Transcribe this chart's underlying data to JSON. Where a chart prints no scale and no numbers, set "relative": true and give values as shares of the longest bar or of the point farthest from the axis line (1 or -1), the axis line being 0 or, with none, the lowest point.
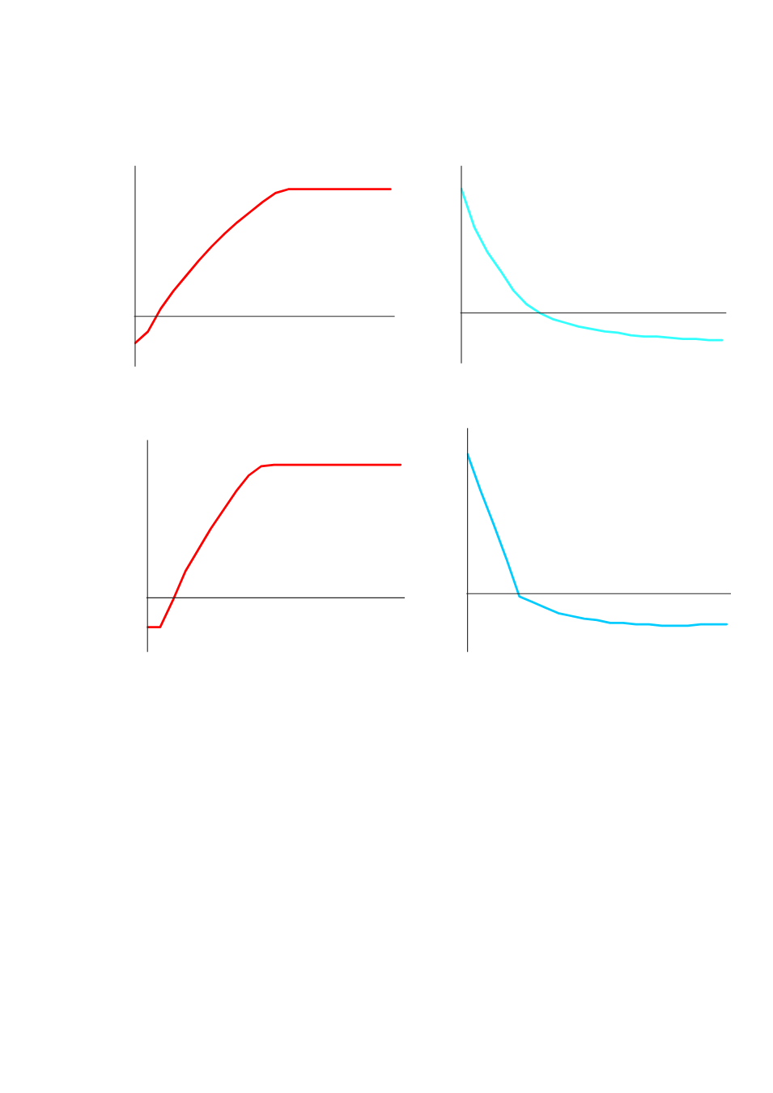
{
  "chart_data": [
    {
      "type": "line",
      "relative": true,
      "categories": [
        null,
        null,
        null,
        null,
        null,
        null,
        null,
        null,
        null,
        null,
        null,
        null,
        null,
        null,
        null,
        null,
        null,
        null,
        null,
        null,
        null
      ],
      "series": [
        {
          "color": "#ff0000",
          "values": [
            -0.21,
            -0.12,
            0.06,
            0.2,
            0.32,
            0.44,
            0.55,
            0.65,
            0.74,
            0.82,
            0.9,
            0.97,
            1,
            1,
            1,
            1,
            1,
            1,
            1,
            1,
            1
          ]
        }
      ]
    },
    {
      "type": "line",
      "relative": true,
      "categories": [
        null,
        null,
        null,
        null,
        null,
        null,
        null,
        null,
        null,
        null,
        null,
        null,
        null,
        null,
        null,
        null,
        null,
        null,
        null,
        null,
        null
      ],
      "series": [
        {
          "color": "#33ffff",
          "values": [
            1,
            0.69,
            0.49,
            0.34,
            0.18,
            0.07,
            0,
            -0.05,
            -0.08,
            -0.11,
            -0.13,
            -0.15,
            -0.16,
            -0.18,
            -0.19,
            -0.19,
            -0.2,
            -0.21,
            -0.21,
            -0.22,
            -0.22
          ]
        }
      ]
    },
    {
      "type": "line",
      "relative": true,
      "categories": [
        null,
        null,
        null,
        null,
        null,
        null,
        null,
        null,
        null,
        null,
        null,
        null,
        null,
        null,
        null,
        null,
        null,
        null,
        null,
        null,
        null
      ],
      "series": [
        {
          "color": "#ff0000",
          "values": [
            -0.22,
            -0.22,
            -0.02,
            0.2,
            0.36,
            0.52,
            0.66,
            0.8,
            0.92,
            0.99,
            1,
            1,
            1,
            1,
            1,
            1,
            1,
            1,
            1,
            1,
            1
          ]
        }
      ]
    },
    {
      "type": "line",
      "relative": true,
      "categories": [
        null,
        null,
        null,
        null,
        null,
        null,
        null,
        null,
        null,
        null,
        null,
        null,
        null,
        null,
        null,
        null,
        null,
        null,
        null,
        null,
        null
      ],
      "series": [
        {
          "color": "#00ccff",
          "values": [
            1,
            0.74,
            0.5,
            0.25,
            -0.02,
            -0.06,
            -0.1,
            -0.14,
            -0.16,
            -0.18,
            -0.19,
            -0.21,
            -0.21,
            -0.22,
            -0.22,
            -0.23,
            -0.23,
            -0.23,
            -0.22,
            -0.22,
            -0.22
          ]
        }
      ]
    }
  ]
}
